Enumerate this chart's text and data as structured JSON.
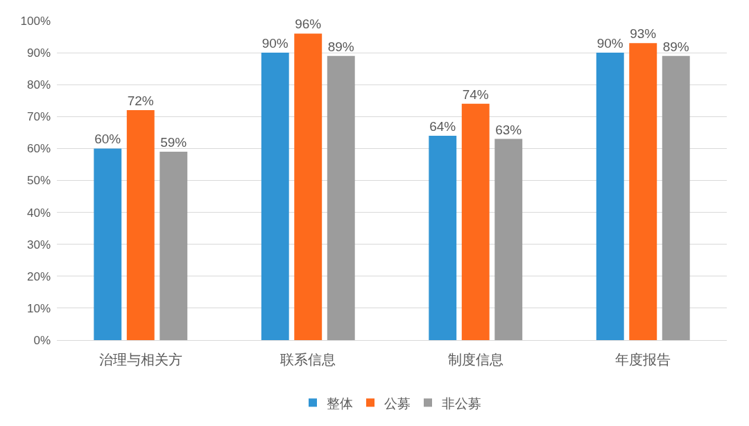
{
  "chart_data": {
    "type": "bar",
    "categories": [
      "治理与相关方",
      "联系信息",
      "制度信息",
      "年度报告"
    ],
    "series": [
      {
        "name": "整体",
        "color": "#3094d4",
        "values": [
          60,
          90,
          64,
          90
        ],
        "value_labels": [
          "60%",
          "90%",
          "64%",
          "90%"
        ]
      },
      {
        "name": "公募",
        "color": "#fe6a1c",
        "values": [
          72,
          96,
          74,
          93
        ],
        "value_labels": [
          "72%",
          "96%",
          "74%",
          "93%"
        ]
      },
      {
        "name": "非公募",
        "color": "#9c9c9c",
        "values": [
          59,
          89,
          63,
          89
        ],
        "value_labels": [
          "59%",
          "89%",
          "63%",
          "89%"
        ]
      }
    ],
    "ylim": [
      0,
      100
    ],
    "yticks": [
      {
        "value": 0,
        "label": "0%"
      },
      {
        "value": 10,
        "label": "10%"
      },
      {
        "value": 20,
        "label": "20%"
      },
      {
        "value": 30,
        "label": "30%"
      },
      {
        "value": 40,
        "label": "40%"
      },
      {
        "value": 50,
        "label": "50%"
      },
      {
        "value": 60,
        "label": "60%"
      },
      {
        "value": 70,
        "label": "70%"
      },
      {
        "value": 80,
        "label": "80%"
      },
      {
        "value": 90,
        "label": "90%"
      },
      {
        "value": 100,
        "label": "100%"
      }
    ],
    "grid": "y",
    "legend": "bottom"
  }
}
